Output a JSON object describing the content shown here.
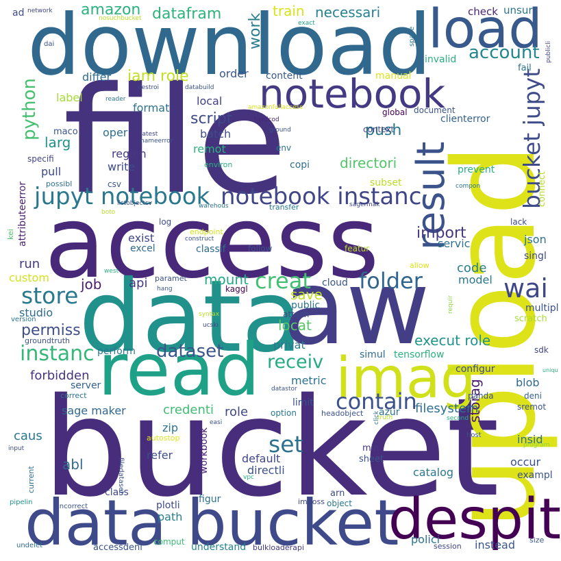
{
  "words": [
    {
      "text": "bucket",
      "color": "#472d7b"
    },
    {
      "text": "access",
      "color": "#482878"
    },
    {
      "text": "file",
      "color": "#46337e"
    },
    {
      "text": "download",
      "color": "#31688e"
    },
    {
      "text": "upload",
      "color": "#dde318"
    },
    {
      "text": "data",
      "color": "#21918c"
    },
    {
      "text": "aw",
      "color": "#433e85"
    },
    {
      "text": "read",
      "color": "#1fa187"
    },
    {
      "text": "data bucket",
      "color": "#3e4a89"
    },
    {
      "text": "despit",
      "color": "#440154"
    },
    {
      "text": "imag",
      "color": "#d0e11c"
    },
    {
      "text": "load",
      "color": "#38598c"
    },
    {
      "text": "notebook",
      "color": "#443983"
    },
    {
      "text": "result",
      "color": "#3b528b"
    },
    {
      "text": "jupyt notebook",
      "color": "#2a788e"
    },
    {
      "text": "notebook instanc",
      "color": "#404688"
    },
    {
      "text": "bucket jupyt",
      "color": "#3e4c8a"
    },
    {
      "text": "wai",
      "color": "#3f4788"
    },
    {
      "text": "contain",
      "color": "#3b518b"
    },
    {
      "text": "folder",
      "color": "#32658e"
    },
    {
      "text": "store",
      "color": "#29788e"
    },
    {
      "text": "set",
      "color": "#2c718e"
    },
    {
      "text": "creat",
      "color": "#43bf71"
    },
    {
      "text": "instanc",
      "color": "#35b779"
    },
    {
      "text": "receiv",
      "color": "#25ab82"
    },
    {
      "text": "dataset",
      "color": "#3a548c"
    },
    {
      "text": "account",
      "color": "#23888e"
    },
    {
      "text": "python",
      "color": "#46c06f"
    },
    {
      "text": "amazon",
      "color": "#2db27d"
    },
    {
      "text": "datafram",
      "color": "#2eb37c"
    },
    {
      "text": "train",
      "color": "#d8e219"
    },
    {
      "text": "necessari",
      "color": "#26828e"
    },
    {
      "text": "work",
      "color": "#287c8e"
    },
    {
      "text": "iam role",
      "color": "#c2df23"
    },
    {
      "text": "push",
      "color": "#2a778e"
    },
    {
      "text": "import",
      "color": "#453882"
    },
    {
      "text": "script",
      "color": "#3e4989"
    },
    {
      "text": "permiss",
      "color": "#3d4e8a"
    },
    {
      "text": "larg",
      "color": "#20928c"
    },
    {
      "text": "mount",
      "color": "#24aa83"
    },
    {
      "text": "save",
      "color": "#bddf26"
    },
    {
      "text": "locat",
      "color": "#56c667"
    },
    {
      "text": "directori",
      "color": "#52c569"
    },
    {
      "text": "execut role",
      "color": "#1f948c"
    },
    {
      "text": "storag",
      "color": "#481a6c"
    },
    {
      "text": "filesystem",
      "color": "#2e6f8e"
    },
    {
      "text": "forbidden",
      "color": "#46327e"
    },
    {
      "text": "credenti",
      "color": "#3fbc73"
    },
    {
      "text": "check",
      "color": "#482475"
    },
    {
      "text": "unsur",
      "color": "#2b748e"
    },
    {
      "text": "differ",
      "color": "#2f6b8e"
    },
    {
      "text": "label",
      "color": "#a5db36"
    },
    {
      "text": "format",
      "color": "#2d718e"
    },
    {
      "text": "local",
      "color": "#423f85"
    },
    {
      "text": "order",
      "color": "#39568c"
    },
    {
      "text": "content",
      "color": "#38598c"
    },
    {
      "text": "manual",
      "color": "#dae319"
    },
    {
      "text": "invalid",
      "color": "#2ab07f"
    },
    {
      "text": "fail",
      "color": "#2c728e"
    },
    {
      "text": "document",
      "color": "#3b518b"
    },
    {
      "text": "global",
      "color": "#440154"
    },
    {
      "text": "clienterror",
      "color": "#34618d"
    },
    {
      "text": "maco",
      "color": "#3a538b"
    },
    {
      "text": "oper",
      "color": "#2e6e8e"
    },
    {
      "text": "batch",
      "color": "#3d4d8a"
    },
    {
      "text": "remot",
      "color": "#2db27d"
    },
    {
      "text": "region",
      "color": "#453781"
    },
    {
      "text": "write",
      "color": "#3e4a89"
    },
    {
      "text": "copi",
      "color": "#2e6e8e"
    },
    {
      "text": "prevent",
      "color": "#27ad81"
    },
    {
      "text": "connect",
      "color": "#b5de2b"
    },
    {
      "text": "pull",
      "color": "#3e4989"
    },
    {
      "text": "specifi",
      "color": "#414487"
    },
    {
      "text": "possibl",
      "color": "#2d708e"
    },
    {
      "text": "csv",
      "color": "#3b528b"
    },
    {
      "text": "env",
      "color": "#2c728e"
    },
    {
      "text": "subset",
      "color": "#bade28"
    },
    {
      "text": "context",
      "color": "#414487"
    },
    {
      "text": "attributeerror",
      "color": "#482173"
    },
    {
      "text": "kei",
      "color": "#4ac16d"
    },
    {
      "text": "log",
      "color": "#3d4e8a"
    },
    {
      "text": "servic",
      "color": "#2c728e"
    },
    {
      "text": "json",
      "color": "#2c738e"
    },
    {
      "text": "lack",
      "color": "#3e4a89"
    },
    {
      "text": "run",
      "color": "#453781"
    },
    {
      "text": "exist",
      "color": "#3f4788"
    },
    {
      "text": "excel",
      "color": "#31688e"
    },
    {
      "text": "classif",
      "color": "#2f6c8e"
    },
    {
      "text": "follow",
      "color": "#3a548c"
    },
    {
      "text": "featur",
      "color": "#b8de29"
    },
    {
      "text": "code",
      "color": "#287d8e"
    },
    {
      "text": "model",
      "color": "#2a768e"
    },
    {
      "text": "singl",
      "color": "#3f4889"
    },
    {
      "text": "custom",
      "color": "#d2e21b"
    },
    {
      "text": "job",
      "color": "#481b6d"
    },
    {
      "text": "api",
      "color": "#453882"
    },
    {
      "text": "paramet",
      "color": "#3b518b"
    },
    {
      "text": "kaggl",
      "color": "#440154"
    },
    {
      "text": "cloud",
      "color": "#39568c"
    },
    {
      "text": "studio",
      "color": "#2f6c8e"
    },
    {
      "text": "public",
      "color": "#2c738e"
    },
    {
      "text": "privat",
      "color": "#2a788e"
    },
    {
      "text": "attach",
      "color": "#3f4788"
    },
    {
      "text": "multipl",
      "color": "#3b518b"
    },
    {
      "text": "scratch",
      "color": "#a8db34"
    },
    {
      "text": "groundtruth",
      "color": "#3b528b"
    },
    {
      "text": "perform",
      "color": "#2a778e"
    },
    {
      "text": "simul",
      "color": "#2f6b8e"
    },
    {
      "text": "tensorflow",
      "color": "#2bb07f"
    },
    {
      "text": "sdk",
      "color": "#404588"
    },
    {
      "text": "server",
      "color": "#34618d"
    },
    {
      "text": "metric",
      "color": "#2c718e"
    },
    {
      "text": "configur",
      "color": "#3e4a89"
    },
    {
      "text": "blob",
      "color": "#31688e"
    },
    {
      "text": "deni",
      "color": "#34618d"
    },
    {
      "text": "sremot",
      "color": "#3b528b"
    },
    {
      "text": "sage maker",
      "color": "#31678e"
    },
    {
      "text": "role",
      "color": "#3f4788"
    },
    {
      "text": "limit",
      "color": "#3b518b"
    },
    {
      "text": "azur",
      "color": "#2c728e"
    },
    {
      "text": "panda",
      "color": "#3a538b"
    },
    {
      "text": "caus",
      "color": "#2a768e"
    },
    {
      "text": "zip",
      "color": "#2c738e"
    },
    {
      "text": "insid",
      "color": "#2e6f8e"
    },
    {
      "text": "occur",
      "color": "#3c4f8a"
    },
    {
      "text": "workbook",
      "color": "#482677"
    },
    {
      "text": "abl",
      "color": "#31688e"
    },
    {
      "text": "default",
      "color": "#3f4788"
    },
    {
      "text": "directli",
      "color": "#3b528b"
    },
    {
      "text": "catalog",
      "color": "#2a788e"
    },
    {
      "text": "refer",
      "color": "#3e4c8a"
    },
    {
      "text": "exampl",
      "color": "#3b528b"
    },
    {
      "text": "class",
      "color": "#3f4788"
    },
    {
      "text": "path",
      "color": "#287d8e"
    },
    {
      "text": "plotli",
      "color": "#3f4889"
    },
    {
      "text": "figur",
      "color": "#2d708e"
    },
    {
      "text": "polici",
      "color": "#2c728e"
    },
    {
      "text": "instead",
      "color": "#39568c"
    },
    {
      "text": "comput",
      "color": "#3bbb75"
    },
    {
      "text": "understand",
      "color": "#26828e"
    },
    {
      "text": "accessdeni",
      "color": "#3a538b"
    },
    {
      "text": "session",
      "color": "#404588"
    },
    {
      "text": "size",
      "color": "#38598c"
    },
    {
      "text": "bulkloaderapi",
      "color": "#453882"
    },
    {
      "text": "undelet",
      "color": "#2f6c8e"
    },
    {
      "text": "pipelin",
      "color": "#20938c"
    },
    {
      "text": "incorrect",
      "color": "#3b528b"
    },
    {
      "text": "imposs",
      "color": "#3f4788"
    },
    {
      "text": "object",
      "color": "#2a768e"
    },
    {
      "text": "arn",
      "color": "#3e4a89"
    },
    {
      "text": "min",
      "color": "#453882"
    },
    {
      "text": "sheet",
      "color": "#3b528b"
    },
    {
      "text": "current",
      "color": "#2d708e"
    },
    {
      "text": "input",
      "color": "#3e4989"
    },
    {
      "text": "host",
      "color": "#3b528b"
    },
    {
      "text": "program",
      "color": "#8fd744"
    },
    {
      "text": "ad",
      "color": "#3e4a89"
    },
    {
      "text": "network",
      "color": "#3f4788"
    },
    {
      "text": "nosuchbucket",
      "color": "#bade28"
    },
    {
      "text": "dai",
      "color": "#3b528b"
    },
    {
      "text": "exact",
      "color": "#1fa088"
    },
    {
      "text": "space",
      "color": "#2c728e"
    },
    {
      "text": "publicli",
      "color": "#414487"
    },
    {
      "text": "destroi",
      "color": "#3f4788"
    },
    {
      "text": "databuild",
      "color": "#3b528b"
    },
    {
      "text": "reader",
      "color": "#2a768e"
    },
    {
      "text": "amazonfullaccess",
      "color": "#d8e219"
    },
    {
      "text": "hardcod",
      "color": "#482878"
    },
    {
      "text": "ground",
      "color": "#3b528b"
    },
    {
      "text": "latest",
      "color": "#414487"
    },
    {
      "text": "nameerror",
      "color": "#3a538b"
    },
    {
      "text": "environ",
      "color": "#2ab07f"
    },
    {
      "text": "compon",
      "color": "#2c738e"
    },
    {
      "text": "listobjectsv",
      "color": "#3b528b"
    },
    {
      "text": "boto",
      "color": "#b5de2b"
    },
    {
      "text": "warehous",
      "color": "#2c728e"
    },
    {
      "text": "transfer",
      "color": "#2a788e"
    },
    {
      "text": "sagermak",
      "color": "#3f4788"
    },
    {
      "text": "endpoint",
      "color": "#d2e21b"
    },
    {
      "text": "construct",
      "color": "#3b528b"
    },
    {
      "text": "allow",
      "color": "#dde318"
    },
    {
      "text": "west",
      "color": "#2bb07f"
    },
    {
      "text": "hang",
      "color": "#3b528b"
    },
    {
      "text": "requir",
      "color": "#8fd744"
    },
    {
      "text": "version",
      "color": "#2a768e"
    },
    {
      "text": "syntax",
      "color": "#bade28"
    },
    {
      "text": "ucski",
      "color": "#3f4788"
    },
    {
      "text": "uniqu",
      "color": "#2ab07f"
    },
    {
      "text": "datastor",
      "color": "#3b528b"
    },
    {
      "text": "correct",
      "color": "#2c738e"
    },
    {
      "text": "option",
      "color": "#2a788e"
    },
    {
      "text": "headobject",
      "color": "#3b518b"
    },
    {
      "text": "truth",
      "color": "#bade28"
    },
    {
      "text": "second",
      "color": "#2ab07f"
    },
    {
      "text": "easi",
      "color": "#3b528b"
    },
    {
      "text": "filedataset",
      "color": "#3b528b"
    },
    {
      "text": "autostop",
      "color": "#dde318"
    },
    {
      "text": "vpc",
      "color": "#2ab07f"
    },
    {
      "text": "click",
      "color": "#2c738e"
    }
  ]
}
